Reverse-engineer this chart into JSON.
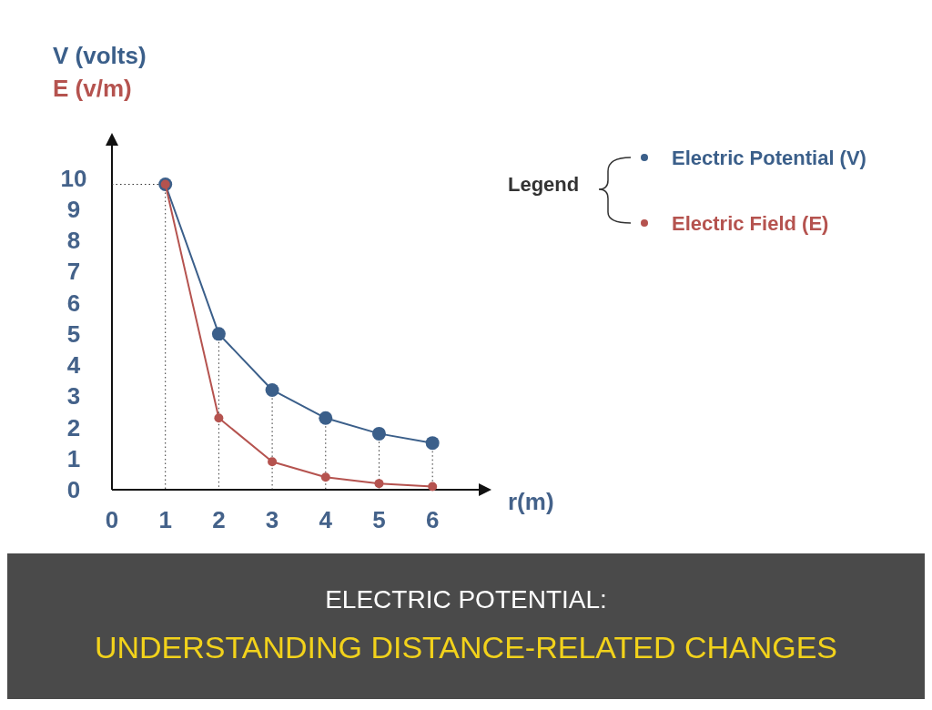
{
  "chart_data": {
    "type": "line",
    "title": "ELECTRIC POTENTIAL:",
    "subtitle": "UNDERSTANDING DISTANCE-RELATED CHANGES",
    "xlabel": "r(m)",
    "ylabel": "V (volts)",
    "annotations": [
      "E (v/m)"
    ],
    "x": [
      1,
      2,
      3,
      4,
      5,
      6
    ],
    "series": [
      {
        "name": "Electric Potential (V)",
        "color": "#3b5f8a",
        "values": [
          9.8,
          5.0,
          3.2,
          2.3,
          1.8,
          1.5
        ]
      },
      {
        "name": "Electric Field (E)",
        "color": "#b5534f",
        "values": [
          9.8,
          2.3,
          0.9,
          0.4,
          0.2,
          0.1
        ]
      }
    ],
    "xlim": [
      0,
      6.9
    ],
    "xticks": [
      0,
      1,
      2,
      3,
      4,
      5,
      6
    ],
    "ylim": [
      0,
      11.1
    ],
    "yticks": [
      0,
      1,
      2,
      3,
      4,
      5,
      6,
      7,
      8,
      9,
      10
    ],
    "grid": false,
    "ref_lines": [
      {
        "axis": "x",
        "value": 1,
        "color": "#333333",
        "line_style": "dotted"
      },
      {
        "axis": "x",
        "value": 2,
        "color": "#333333",
        "line_style": "dotted"
      },
      {
        "axis": "x",
        "value": 3,
        "color": "#333333",
        "line_style": "dotted"
      },
      {
        "axis": "x",
        "value": 4,
        "color": "#333333",
        "line_style": "dotted"
      },
      {
        "axis": "x",
        "value": 5,
        "color": "#333333",
        "line_style": "dotted"
      },
      {
        "axis": "x",
        "value": 6,
        "color": "#333333",
        "line_style": "dotted"
      },
      {
        "axis": "y",
        "value": 9.8,
        "color": "#333333",
        "line_style": "dotted"
      }
    ],
    "legend": "top right",
    "legend_title": "Legend",
    "marker": "circle",
    "line_style": "solid"
  }
}
